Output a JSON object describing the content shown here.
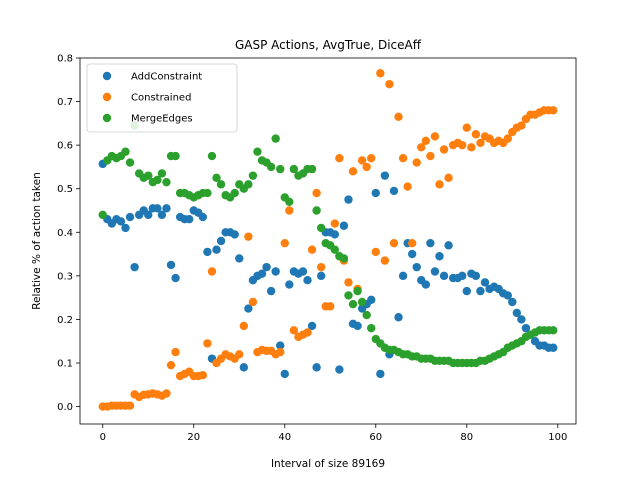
{
  "chart_data": {
    "type": "scatter",
    "title": "GASP Actions, AvgTrue, DiceAff",
    "xlabel": "Interval of size 89169",
    "ylabel": "Relative % of action taken",
    "xlim": [
      -5,
      104
    ],
    "ylim": [
      -0.04,
      0.8
    ],
    "xticks": [
      0,
      20,
      40,
      60,
      80,
      100
    ],
    "yticks": [
      0.0,
      0.1,
      0.2,
      0.3,
      0.4,
      0.5,
      0.6,
      0.7,
      0.8
    ],
    "ytick_labels": [
      "0.0",
      "0.1",
      "0.2",
      "0.3",
      "0.4",
      "0.5",
      "0.6",
      "0.7",
      "0.8"
    ],
    "grid": false,
    "legend_position": "top-left",
    "series": [
      {
        "name": "AddConstraint",
        "color": "#1f77b4",
        "x": [
          0,
          1,
          2,
          3,
          4,
          5,
          6,
          7,
          8,
          9,
          10,
          11,
          12,
          13,
          14,
          15,
          16,
          17,
          18,
          19,
          20,
          21,
          22,
          23,
          24,
          25,
          26,
          27,
          28,
          29,
          30,
          31,
          32,
          33,
          34,
          35,
          36,
          37,
          38,
          39,
          40,
          41,
          42,
          43,
          44,
          45,
          46,
          47,
          48,
          49,
          50,
          51,
          52,
          53,
          54,
          55,
          56,
          57,
          58,
          59,
          60,
          61,
          62,
          63,
          64,
          65,
          66,
          67,
          68,
          69,
          70,
          71,
          72,
          73,
          74,
          75,
          76,
          77,
          78,
          79,
          80,
          81,
          82,
          83,
          84,
          85,
          86,
          87,
          88,
          89,
          90,
          91,
          92,
          93,
          94,
          95,
          96,
          97,
          98,
          99
        ],
        "y": [
          0.557,
          0.43,
          0.42,
          0.43,
          0.425,
          0.41,
          0.435,
          0.32,
          0.44,
          0.45,
          0.44,
          0.455,
          0.455,
          0.44,
          0.455,
          0.325,
          0.295,
          0.435,
          0.43,
          0.43,
          0.45,
          0.445,
          0.435,
          0.355,
          0.11,
          0.36,
          0.38,
          0.4,
          0.4,
          0.395,
          0.34,
          0.09,
          0.225,
          0.29,
          0.3,
          0.305,
          0.32,
          0.265,
          0.31,
          0.14,
          0.075,
          0.28,
          0.31,
          0.305,
          0.31,
          0.29,
          0.185,
          0.09,
          0.3,
          0.4,
          0.4,
          0.395,
          0.085,
          0.415,
          0.475,
          0.19,
          0.185,
          0.225,
          0.235,
          0.245,
          0.49,
          0.075,
          0.53,
          0.12,
          0.495,
          0.205,
          0.3,
          0.375,
          0.35,
          0.32,
          0.29,
          0.28,
          0.375,
          0.31,
          0.345,
          0.3,
          0.37,
          0.295,
          0.295,
          0.3,
          0.265,
          0.305,
          0.3,
          0.265,
          0.285,
          0.27,
          0.275,
          0.27,
          0.26,
          0.255,
          0.24,
          0.215,
          0.2,
          0.18,
          0.165,
          0.15,
          0.14,
          0.14,
          0.135,
          0.135
        ]
      },
      {
        "name": "Constrained",
        "color": "#ff7f0e",
        "x": [
          0,
          1,
          2,
          3,
          4,
          5,
          6,
          7,
          8,
          9,
          10,
          11,
          12,
          13,
          14,
          15,
          16,
          17,
          18,
          19,
          20,
          21,
          22,
          23,
          24,
          25,
          26,
          27,
          28,
          29,
          30,
          31,
          32,
          33,
          34,
          35,
          36,
          37,
          38,
          39,
          40,
          41,
          42,
          43,
          44,
          45,
          46,
          47,
          48,
          49,
          50,
          51,
          52,
          53,
          54,
          55,
          56,
          57,
          58,
          59,
          60,
          61,
          62,
          63,
          64,
          65,
          66,
          67,
          68,
          69,
          70,
          71,
          72,
          73,
          74,
          75,
          76,
          77,
          78,
          79,
          80,
          81,
          82,
          83,
          84,
          85,
          86,
          87,
          88,
          89,
          90,
          91,
          92,
          93,
          94,
          95,
          96,
          97,
          98,
          99
        ],
        "y": [
          0.0,
          0.0,
          0.002,
          0.002,
          0.002,
          0.002,
          0.002,
          0.028,
          0.022,
          0.027,
          0.028,
          0.03,
          0.028,
          0.025,
          0.03,
          0.095,
          0.125,
          0.07,
          0.075,
          0.08,
          0.07,
          0.07,
          0.072,
          0.145,
          0.31,
          0.1,
          0.11,
          0.12,
          0.115,
          0.11,
          0.12,
          0.185,
          0.39,
          0.24,
          0.125,
          0.13,
          0.128,
          0.128,
          0.12,
          0.125,
          0.375,
          0.45,
          0.175,
          0.16,
          0.165,
          0.17,
          0.36,
          0.49,
          0.32,
          0.23,
          0.23,
          0.42,
          0.57,
          0.335,
          0.285,
          0.54,
          0.27,
          0.565,
          0.55,
          0.57,
          0.355,
          0.765,
          0.335,
          0.74,
          0.375,
          0.665,
          0.57,
          0.505,
          0.375,
          0.56,
          0.595,
          0.61,
          0.575,
          0.62,
          0.51,
          0.59,
          0.525,
          0.6,
          0.605,
          0.6,
          0.64,
          0.595,
          0.625,
          0.605,
          0.62,
          0.615,
          0.605,
          0.61,
          0.605,
          0.615,
          0.63,
          0.64,
          0.645,
          0.66,
          0.67,
          0.67,
          0.675,
          0.68,
          0.68,
          0.68
        ]
      },
      {
        "name": "MergeEdges",
        "color": "#2ca02c",
        "x": [
          0,
          1,
          2,
          3,
          4,
          5,
          6,
          7,
          8,
          9,
          10,
          11,
          12,
          13,
          14,
          15,
          16,
          17,
          18,
          19,
          20,
          21,
          22,
          23,
          24,
          25,
          26,
          27,
          28,
          29,
          30,
          31,
          32,
          33,
          34,
          35,
          36,
          37,
          38,
          39,
          40,
          41,
          42,
          43,
          44,
          45,
          46,
          47,
          48,
          49,
          50,
          51,
          52,
          53,
          54,
          55,
          56,
          57,
          58,
          59,
          60,
          61,
          62,
          63,
          64,
          65,
          66,
          67,
          68,
          69,
          70,
          71,
          72,
          73,
          74,
          75,
          76,
          77,
          78,
          79,
          80,
          81,
          82,
          83,
          84,
          85,
          86,
          87,
          88,
          89,
          90,
          91,
          92,
          93,
          94,
          95,
          96,
          97,
          98,
          99
        ],
        "y": [
          0.44,
          0.565,
          0.575,
          0.57,
          0.575,
          0.585,
          0.56,
          0.645,
          0.535,
          0.525,
          0.53,
          0.515,
          0.52,
          0.535,
          0.515,
          0.575,
          0.575,
          0.49,
          0.49,
          0.485,
          0.48,
          0.485,
          0.49,
          0.49,
          0.575,
          0.525,
          0.51,
          0.485,
          0.48,
          0.49,
          0.51,
          0.5,
          0.51,
          0.53,
          0.585,
          0.565,
          0.56,
          0.55,
          0.615,
          0.545,
          0.48,
          0.47,
          0.545,
          0.53,
          0.535,
          0.545,
          0.545,
          0.45,
          0.41,
          0.375,
          0.37,
          0.36,
          0.345,
          0.34,
          0.255,
          0.235,
          0.265,
          0.24,
          0.21,
          0.18,
          0.155,
          0.145,
          0.135,
          0.13,
          0.13,
          0.125,
          0.12,
          0.12,
          0.115,
          0.115,
          0.11,
          0.11,
          0.11,
          0.105,
          0.105,
          0.105,
          0.105,
          0.1,
          0.1,
          0.1,
          0.1,
          0.1,
          0.1,
          0.105,
          0.105,
          0.11,
          0.115,
          0.12,
          0.125,
          0.135,
          0.14,
          0.145,
          0.15,
          0.16,
          0.165,
          0.17,
          0.175,
          0.175,
          0.175,
          0.175
        ]
      }
    ]
  }
}
